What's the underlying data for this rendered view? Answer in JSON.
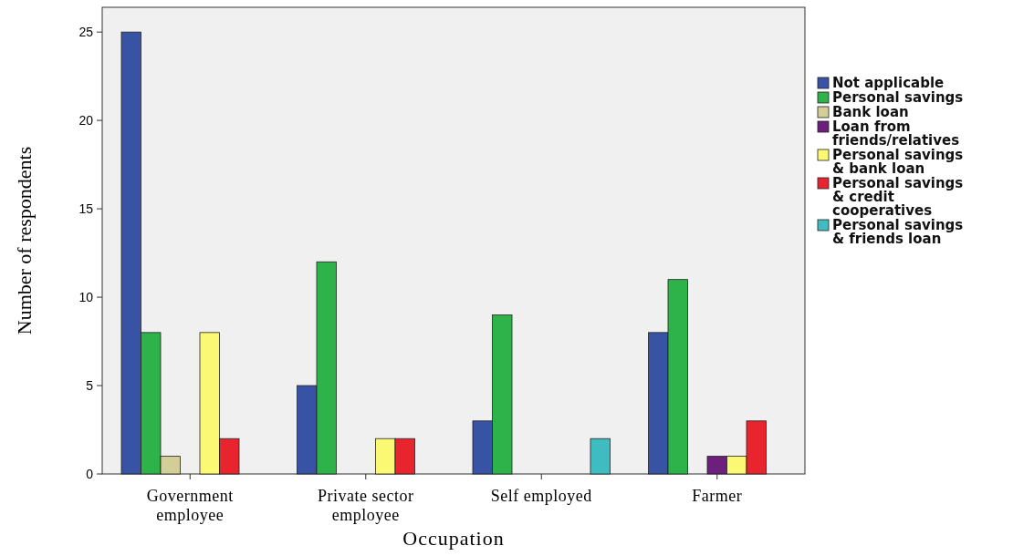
{
  "chart_data": {
    "type": "bar",
    "xlabel": "Occupation",
    "ylabel": "Number of respondents",
    "categories": [
      "Government employee",
      "Private sector employee",
      "Self employed",
      "Farmer"
    ],
    "series": [
      {
        "name": "Not applicable",
        "color": "#3953a4",
        "values": [
          25,
          5,
          3,
          8
        ]
      },
      {
        "name": "Personal savings",
        "color": "#2db34a",
        "values": [
          8,
          12,
          9,
          11
        ]
      },
      {
        "name": "Bank loan",
        "color": "#d3ce97",
        "values": [
          1,
          null,
          null,
          null
        ]
      },
      {
        "name": "Loan from friends/relatives",
        "color": "#6d1f7e",
        "values": [
          null,
          null,
          null,
          1
        ]
      },
      {
        "name": "Personal savings & bank loan",
        "color": "#fbf873",
        "values": [
          8,
          2,
          null,
          1
        ]
      },
      {
        "name": "Personal savings & credit cooperatives",
        "color": "#e8252f",
        "values": [
          2,
          2,
          null,
          3
        ]
      },
      {
        "name": "Personal savings & friends loan",
        "color": "#3fbcc0",
        "values": [
          null,
          null,
          2,
          null
        ]
      }
    ],
    "ylim": [
      0,
      26.4
    ],
    "yticks": [
      0,
      5,
      10,
      15,
      20,
      25
    ],
    "grid": false,
    "legend": "right"
  }
}
